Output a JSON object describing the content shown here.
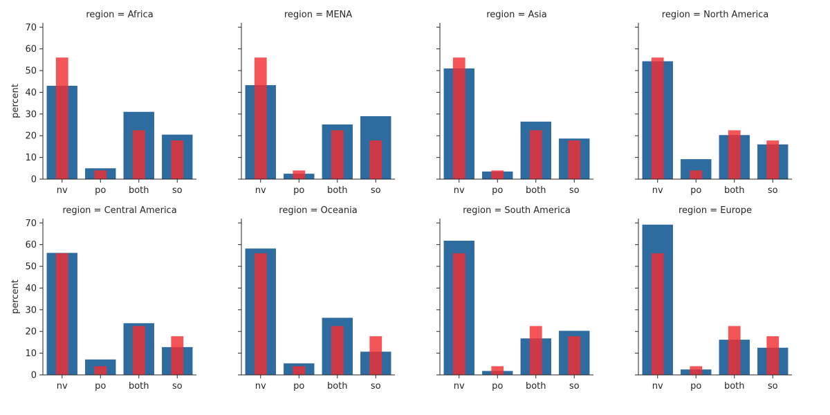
{
  "chart_data": {
    "type": "bar",
    "layout": "facet-grid 2x4",
    "categories": [
      "nv",
      "po",
      "both",
      "so"
    ],
    "ylabel": "percent",
    "ylim": [
      0,
      72
    ],
    "yticks": [
      0,
      10,
      20,
      30,
      40,
      50,
      60,
      70
    ],
    "grid": false,
    "colors": {
      "regional": "#2e6b9e",
      "overall": "#f03033"
    },
    "overall_values": [
      56,
      4,
      22.5,
      17.8
    ],
    "facets": [
      {
        "title": "region = Africa",
        "values": [
          43,
          5,
          31,
          20.5
        ]
      },
      {
        "title": "region = MENA",
        "values": [
          43.3,
          2.5,
          25.2,
          29
        ]
      },
      {
        "title": "region = Asia",
        "values": [
          51,
          3.5,
          26.5,
          18.7
        ]
      },
      {
        "title": "region = North America",
        "values": [
          54.3,
          9.2,
          20.3,
          16
        ]
      },
      {
        "title": "region = Central America",
        "values": [
          56.2,
          7.1,
          23.8,
          12.8
        ]
      },
      {
        "title": "region = Oceania",
        "values": [
          58.2,
          5.3,
          26.3,
          10.7
        ]
      },
      {
        "title": "region = South America",
        "values": [
          61.8,
          1.8,
          16.8,
          20.3
        ]
      },
      {
        "title": "region = Europe",
        "values": [
          69.2,
          2.5,
          16.2,
          12.5
        ]
      }
    ]
  }
}
